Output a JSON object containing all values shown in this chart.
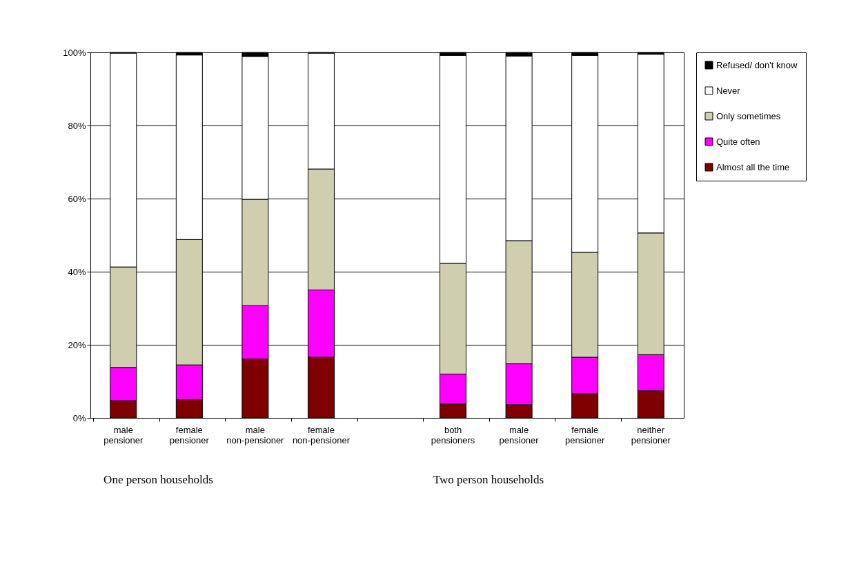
{
  "chart_data": {
    "type": "bar",
    "stacked": true,
    "categories": [
      "male pensioner",
      "female pensioner",
      "male non-pensioner",
      "female non-pensioner",
      null,
      "both pensioners",
      "male pensioner",
      "female pensioner",
      "neither pensioner"
    ],
    "series": [
      {
        "name": "Almost all the time",
        "color": "#800000",
        "values": [
          4.7,
          5.0,
          16.1,
          16.6,
          null,
          3.8,
          3.6,
          6.6,
          7.4
        ]
      },
      {
        "name": "Quite often",
        "color": "#ff00ff",
        "values": [
          9.1,
          9.5,
          14.6,
          18.4,
          null,
          8.2,
          11.2,
          10.0,
          9.9
        ]
      },
      {
        "name": "Only sometimes",
        "color": "#cfcfb0",
        "values": [
          27.5,
          34.3,
          29.1,
          33.1,
          null,
          30.3,
          33.7,
          28.7,
          33.3
        ]
      },
      {
        "name": "Never",
        "color": "#ffffff",
        "values": [
          58.5,
          50.5,
          39.1,
          31.7,
          null,
          56.9,
          50.5,
          53.9,
          48.9
        ]
      },
      {
        "name": "Refused/ don't know",
        "color": "#000000",
        "values": [
          0.2,
          0.7,
          1.1,
          0.2,
          null,
          0.8,
          1.0,
          0.8,
          0.5
        ]
      }
    ],
    "ylim": [
      0,
      100
    ],
    "yticks": [
      {
        "value": 0,
        "label": "0%"
      },
      {
        "value": 20,
        "label": "20%"
      },
      {
        "value": 40,
        "label": "40%"
      },
      {
        "value": 60,
        "label": "60%"
      },
      {
        "value": 80,
        "label": "80%"
      },
      {
        "value": 100,
        "label": "100%"
      }
    ],
    "grid": "y",
    "legend": "right",
    "annotations": [
      "One person households",
      "Two person households"
    ]
  }
}
